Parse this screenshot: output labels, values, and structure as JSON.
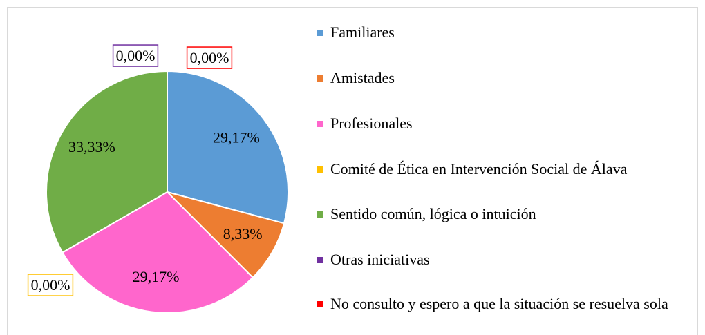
{
  "chart_data": {
    "type": "pie",
    "categories": [
      "Familiares",
      "Amistades",
      "Profesionales",
      "Comité de Ética en Intervención Social de Álava",
      "Sentido común, lógica o intuición",
      "Otras iniciativas",
      "No consulto y espero a que la situación se resuelva sola"
    ],
    "values": [
      29.17,
      8.33,
      29.17,
      0,
      33.33,
      0,
      0
    ],
    "value_labels": [
      "29,17%",
      "8,33%",
      "29,17%",
      "0,00%",
      "33,33%",
      "0,00%",
      "0,00%"
    ],
    "colors": [
      "#5b9bd5",
      "#ed7d31",
      "#ff66cc",
      "#ffc000",
      "#70ad47",
      "#7030a0",
      "#ff0000"
    ],
    "legend": "right"
  }
}
